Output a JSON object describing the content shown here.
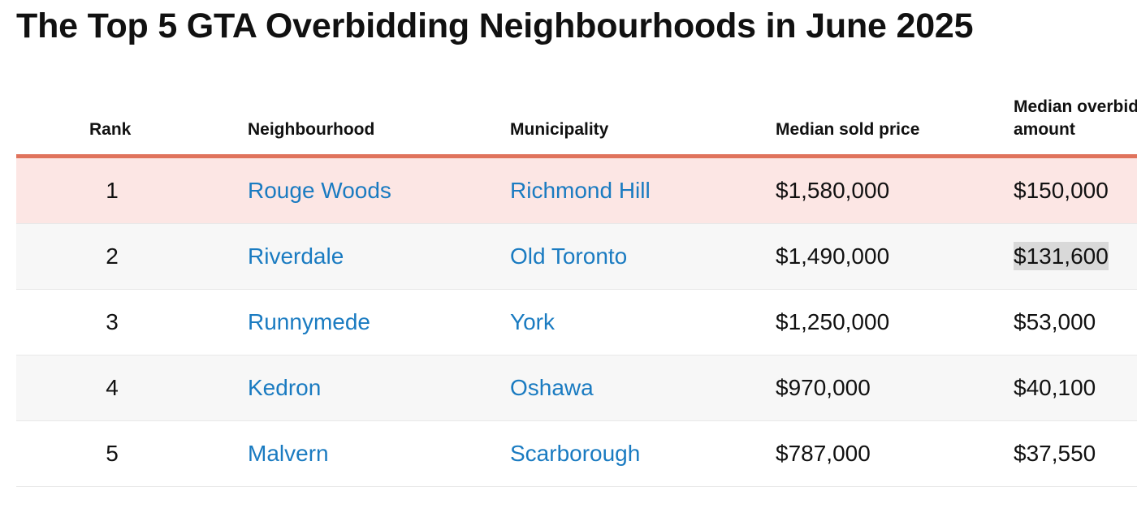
{
  "title": "The Top 5 GTA Overbidding Neighbourhoods in June 2025",
  "colors": {
    "accent_rule": "#e0735c",
    "link": "#1a7bc1",
    "highlight_row": "#fce6e4",
    "stripe_row": "#f7f7f7"
  },
  "chart_data": {
    "type": "table",
    "title": "The Top 5 GTA Overbidding Neighbourhoods in June 2025",
    "columns": [
      "Rank",
      "Neighbourhood",
      "Municipality",
      "Median sold price",
      "Median overbid amount"
    ],
    "header_labels": {
      "rank": "Rank",
      "neighbourhood": "Neighbourhood",
      "municipality": "Municipality",
      "price": "Median sold price",
      "overbid_line1": "Median overbid",
      "overbid_line2": "amount"
    },
    "rows": [
      {
        "rank": "1",
        "neighbourhood": "Rouge Woods",
        "municipality": "Richmond Hill",
        "price": "$1,580,000",
        "overbid": "$150,000"
      },
      {
        "rank": "2",
        "neighbourhood": "Riverdale",
        "municipality": "Old Toronto",
        "price": "$1,490,000",
        "overbid": "$131,600"
      },
      {
        "rank": "3",
        "neighbourhood": "Runnymede",
        "municipality": "York",
        "price": "$1,250,000",
        "overbid": "$53,000"
      },
      {
        "rank": "4",
        "neighbourhood": "Kedron",
        "municipality": "Oshawa",
        "price": "$970,000",
        "overbid": "$40,100"
      },
      {
        "rank": "5",
        "neighbourhood": "Malvern",
        "municipality": "Scarborough",
        "price": "$787,000",
        "overbid": "$37,550"
      }
    ]
  }
}
